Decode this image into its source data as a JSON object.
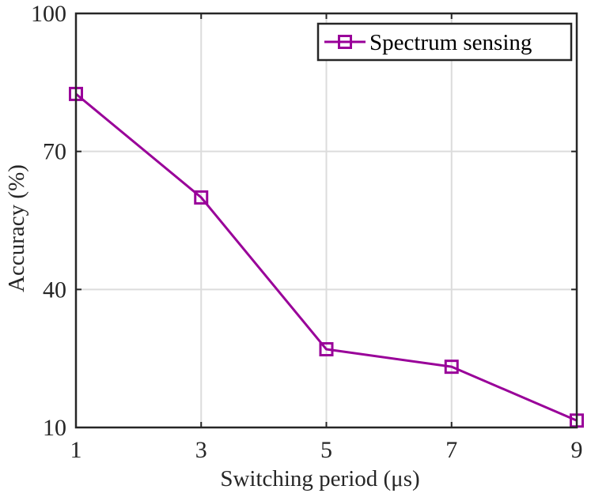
{
  "chart_data": {
    "type": "line",
    "title": "",
    "xlabel": "Switching period (μs)",
    "ylabel": "Accuracy (%)",
    "xlim": [
      1,
      9
    ],
    "ylim": [
      10,
      100
    ],
    "xticks": [
      1,
      3,
      5,
      7,
      9
    ],
    "yticks": [
      10,
      40,
      70,
      100
    ],
    "grid": true,
    "legend_position": "top-right",
    "series": [
      {
        "name": "Spectrum sensing",
        "color": "#990099",
        "marker": "square",
        "x": [
          1,
          3,
          5,
          7,
          9
        ],
        "y": [
          82.5,
          60,
          27,
          23.2,
          11.5
        ]
      }
    ]
  }
}
